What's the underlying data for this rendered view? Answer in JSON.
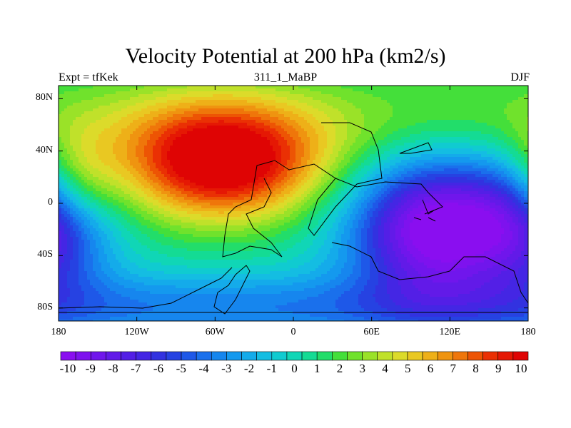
{
  "chart_data": {
    "type": "heatmap",
    "title": "Velocity Potential at 200 hPa (km2/s)",
    "left_string": "Expt = tfKek",
    "center_string": "311_1_MaBP",
    "right_string": "DJF",
    "x_axis": {
      "range": [
        -180,
        180
      ],
      "ticks": [
        -180,
        -120,
        -60,
        0,
        60,
        120,
        180
      ],
      "tick_labels": [
        "180",
        "120W",
        "60W",
        "0",
        "60E",
        "120E",
        "180"
      ]
    },
    "y_axis": {
      "range": [
        -90,
        90
      ],
      "ticks": [
        80,
        40,
        0,
        -40,
        -80
      ],
      "tick_labels": [
        "80N",
        "40N",
        "0",
        "40S",
        "80S"
      ]
    },
    "colorbar": {
      "levels": [
        -10,
        -9,
        -8,
        -7,
        -6,
        -5,
        -4,
        -3,
        -2,
        -1,
        0,
        1,
        2,
        3,
        4,
        5,
        6,
        7,
        8,
        9,
        10
      ],
      "labels": [
        "-10",
        "-9",
        "-8",
        "-7",
        "-6",
        "-5",
        "-4",
        "-3",
        "-2",
        "-1",
        "0",
        "1",
        "2",
        "3",
        "4",
        "5",
        "6",
        "7",
        "8",
        "9",
        "10"
      ],
      "colors": [
        "#8a0ef0",
        "#7e12ee",
        "#7016ec",
        "#621ae8",
        "#531fe6",
        "#4426e4",
        "#3232e0",
        "#2642e2",
        "#1e58e8",
        "#1a70ec",
        "#1686ee",
        "#1499ee",
        "#14abea",
        "#14bde2",
        "#10cbd0",
        "#10d6b6",
        "#14db94",
        "#22dd6a",
        "#44df3a",
        "#70e22c",
        "#9ae228",
        "#c0e12a",
        "#dcdb2a",
        "#e9c822",
        "#eeb018",
        "#ef9410",
        "#ef760a",
        "#ed5404",
        "#ea3004",
        "#e51804",
        "#df0404"
      ]
    },
    "field_peaks": [
      {
        "lon": -55,
        "lat": 30,
        "value": 10
      },
      {
        "lon": 110,
        "lat": -20,
        "value": -10
      }
    ]
  }
}
